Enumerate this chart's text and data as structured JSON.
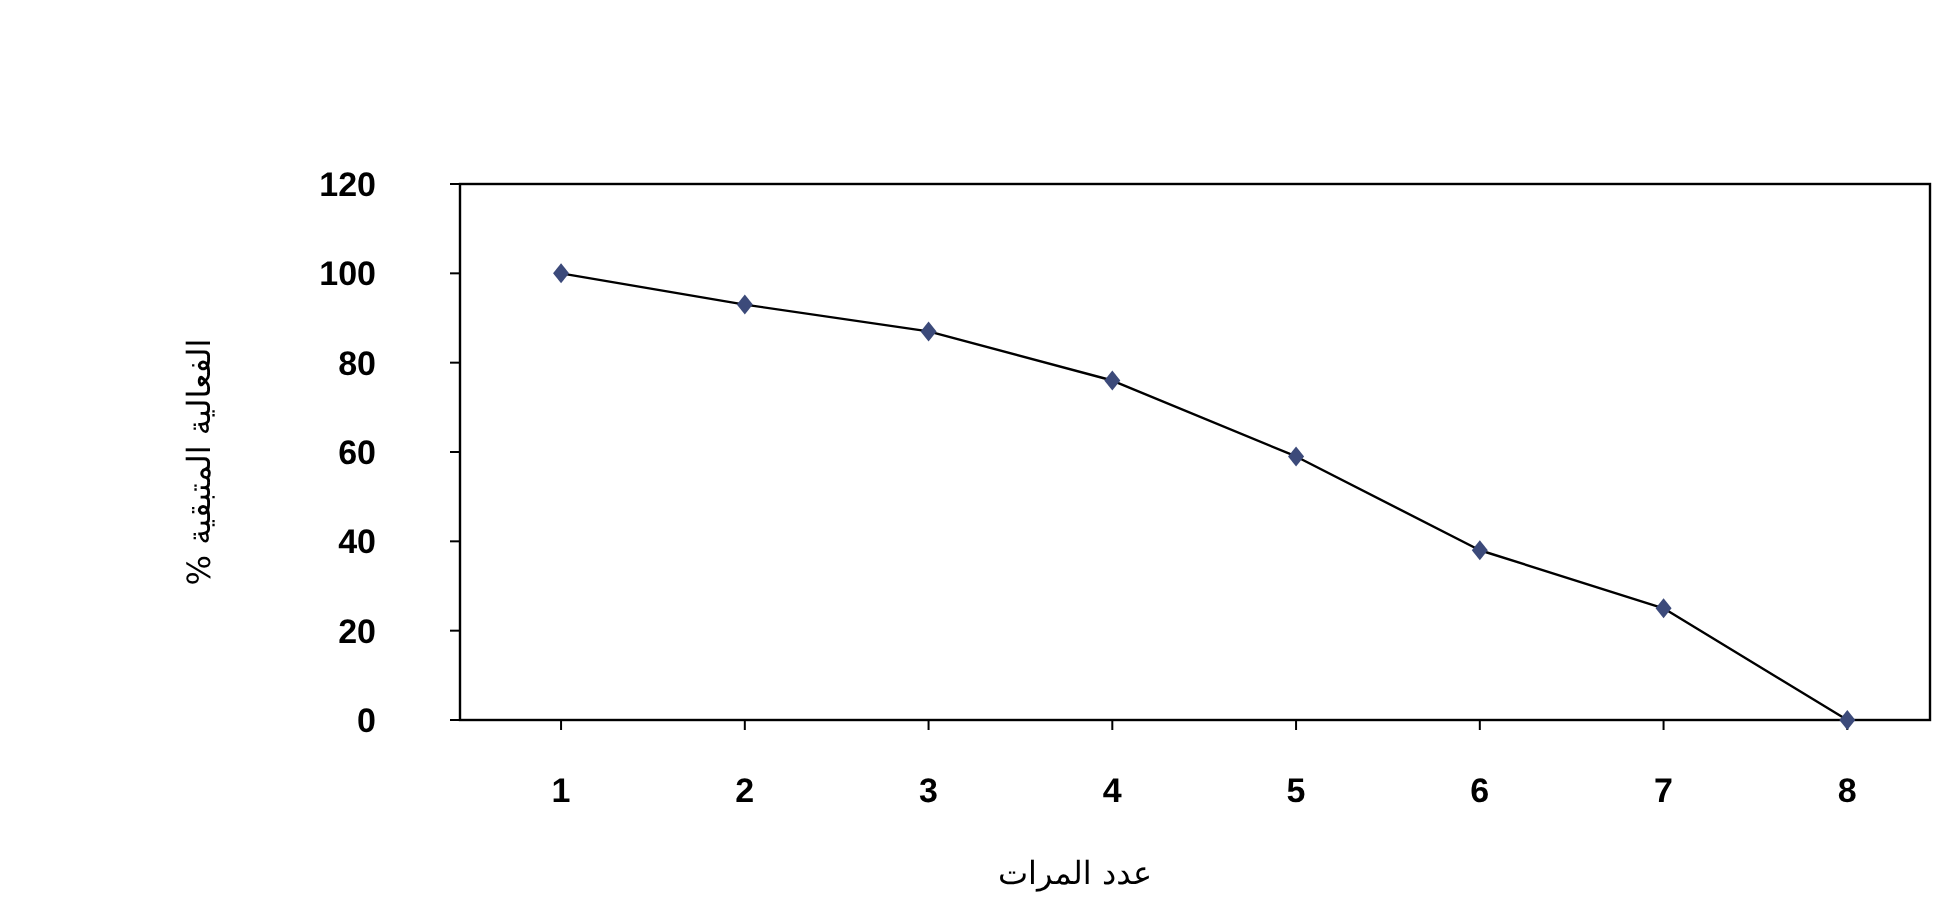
{
  "chart_data": {
    "type": "line",
    "xlabel": "عدد المرات",
    "ylabel": "الفعالية المتبقية %",
    "categories": [
      "1",
      "2",
      "3",
      "4",
      "5",
      "6",
      "7",
      "8"
    ],
    "series": [
      {
        "color": "#3c4a7a",
        "values": [
          100,
          93,
          87,
          76,
          59,
          38,
          25,
          0
        ]
      }
    ],
    "ylim": [
      0,
      120
    ],
    "yticks": [
      0,
      20,
      40,
      60,
      80,
      100,
      120
    ],
    "marker": "diamond",
    "grid": false
  }
}
